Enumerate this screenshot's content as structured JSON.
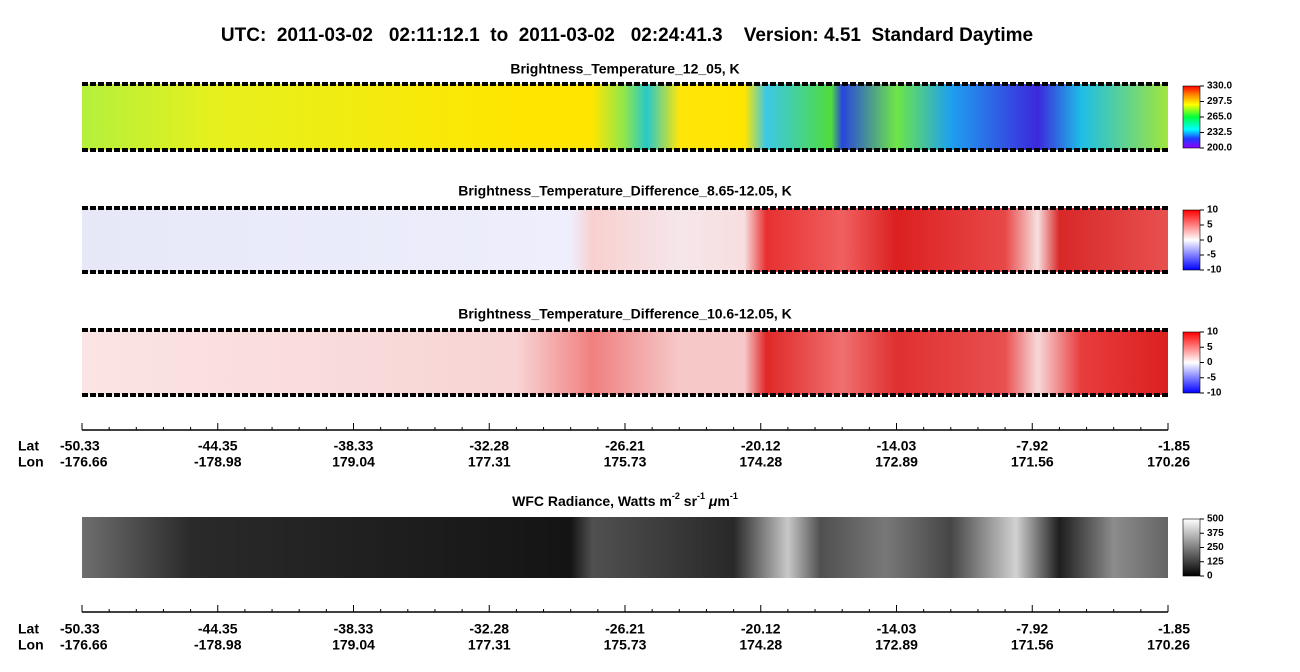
{
  "title": "UTC:  2011-03-02   02:11:12.1  to  2011-03-02   02:24:41.3    Version: 4.51  Standard Daytime",
  "chart_data": [
    {
      "type": "heatmap",
      "title": "Brightness_Temperature_12_05, K",
      "colorbar": {
        "lim": [
          200,
          330
        ],
        "ticks": [
          {
            "value": 330,
            "label": "330.0"
          },
          {
            "value": 297.5,
            "label": "297.5"
          },
          {
            "value": 265,
            "label": "265.0"
          },
          {
            "value": 232.5,
            "label": "232.5"
          },
          {
            "value": 200,
            "label": "200.0"
          }
        ]
      }
    },
    {
      "type": "heatmap",
      "title": "Brightness_Temperature_Difference_8.65-12.05, K",
      "colorbar": {
        "lim": [
          -10,
          10
        ],
        "ticks": [
          10,
          5,
          0,
          -5,
          -10
        ]
      }
    },
    {
      "type": "heatmap",
      "title": "Brightness_Temperature_Difference_10.6-12.05, K",
      "colorbar": {
        "lim": [
          -10,
          10
        ],
        "ticks": [
          10,
          5,
          0,
          -5,
          -10
        ]
      }
    },
    {
      "type": "heatmap",
      "title_parts": [
        "WFC Radiance, Watts m",
        "-2",
        " sr",
        "-1",
        " μ",
        "m",
        "-1"
      ],
      "colorbar": {
        "lim": [
          0,
          500
        ],
        "ticks": [
          500,
          375,
          250,
          125,
          0
        ]
      }
    }
  ],
  "axis": {
    "lat_label": "Lat",
    "lon_label": "Lon",
    "lat": [
      -50.33,
      -44.35,
      -38.33,
      -32.28,
      -26.21,
      -20.12,
      -14.03,
      -7.92,
      -1.85
    ],
    "lon": [
      -176.66,
      -178.98,
      179.04,
      177.31,
      175.73,
      174.28,
      172.89,
      171.56,
      170.26
    ]
  }
}
